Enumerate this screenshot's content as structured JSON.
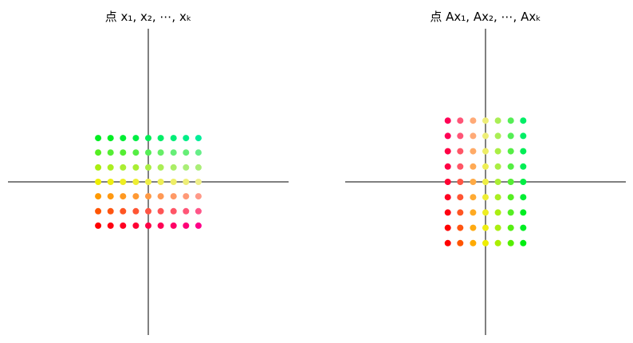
{
  "chart_data": [
    {
      "type": "scatter",
      "title": "点 x₁, x₂, ⋯, xₖ",
      "xlim": [
        -3.5,
        3.5
      ],
      "ylim": [
        -3.5,
        3.5
      ],
      "axes": "centered cross through origin, no ticks",
      "grid": false,
      "columns_x": [
        -1.25,
        -0.94,
        -0.63,
        -0.31,
        0,
        0.31,
        0.63,
        0.94,
        1.25
      ],
      "rows": [
        {
          "y": 1.0,
          "colors": [
            "#00ee22",
            "#00ee22",
            "#00ee33",
            "#00ee44",
            "#00ee55",
            "#00ee66",
            "#00ee77",
            "#00ee88",
            "#00ee99"
          ]
        },
        {
          "y": 0.67,
          "colors": [
            "#55ee22",
            "#55ee33",
            "#55ee33",
            "#55ee44",
            "#55ee55",
            "#66ee66",
            "#66ee77",
            "#66ee77",
            "#66ee88"
          ]
        },
        {
          "y": 0.33,
          "colors": [
            "#aaee11",
            "#aaee22",
            "#aaee33",
            "#aaee33",
            "#aaee44",
            "#aaee55",
            "#aaee66",
            "#aaee77",
            "#aaee77"
          ]
        },
        {
          "y": 0.0,
          "colors": [
            "#eeee00",
            "#eeee11",
            "#eeee22",
            "#eeee33",
            "#eeee44",
            "#eeee55",
            "#eeee66",
            "#eeee77",
            "#eeee88"
          ]
        },
        {
          "y": -0.33,
          "colors": [
            "#ff9900",
            "#ff9911",
            "#ff9922",
            "#ff9933",
            "#ff9944",
            "#ff9955",
            "#ff9966",
            "#ff9977",
            "#ff9988"
          ]
        },
        {
          "y": -0.67,
          "colors": [
            "#ff5500",
            "#ff5511",
            "#ff5522",
            "#ff5533",
            "#ff5544",
            "#ff5555",
            "#ff5566",
            "#ff5577",
            "#ff5588"
          ]
        },
        {
          "y": -1.0,
          "colors": [
            "#ff0000",
            "#ff0011",
            "#ff0022",
            "#ff0033",
            "#ff0044",
            "#ff0055",
            "#ff0066",
            "#ff0077",
            "#ff0088"
          ]
        }
      ]
    },
    {
      "type": "scatter",
      "title": "点 Ax₁, Ax₂, ⋯, Axₖ",
      "xlim": [
        -3.5,
        3.5
      ],
      "ylim": [
        -3.5,
        3.5
      ],
      "axes": "centered cross through origin, no ticks",
      "grid": false,
      "columns_x": [
        -0.94,
        -0.63,
        -0.31,
        0,
        0.31,
        0.63,
        0.94
      ],
      "rows": [
        {
          "y": 1.4,
          "colors": [
            "#ff0055",
            "#ff5577",
            "#ffaa77",
            "#eeee77",
            "#aaee55",
            "#55ee55",
            "#00ee66"
          ]
        },
        {
          "y": 1.05,
          "colors": [
            "#ff0055",
            "#ff5577",
            "#ffaa77",
            "#eeee77",
            "#aaee55",
            "#55ee55",
            "#00ee66"
          ]
        },
        {
          "y": 0.7,
          "colors": [
            "#ff0044",
            "#ff5566",
            "#ffaa66",
            "#eeee66",
            "#aaee44",
            "#55ee44",
            "#00ee55"
          ]
        },
        {
          "y": 0.35,
          "colors": [
            "#ff0044",
            "#ff5566",
            "#ffaa55",
            "#eeee55",
            "#aaee44",
            "#55ee44",
            "#00ee55"
          ]
        },
        {
          "y": 0.0,
          "colors": [
            "#ff0033",
            "#ff5544",
            "#ffaa44",
            "#eeee44",
            "#aaee33",
            "#55ee33",
            "#00ee44"
          ]
        },
        {
          "y": -0.35,
          "colors": [
            "#ff0022",
            "#ff5533",
            "#ffaa33",
            "#eeee33",
            "#aaee22",
            "#55ee22",
            "#00ee33"
          ]
        },
        {
          "y": -0.7,
          "colors": [
            "#ff0011",
            "#ff5522",
            "#ffaa22",
            "#eeee22",
            "#aaee11",
            "#55ee22",
            "#00ee22"
          ]
        },
        {
          "y": -1.05,
          "colors": [
            "#ff0000",
            "#ff5511",
            "#ffaa11",
            "#eeee11",
            "#aaee11",
            "#55ee11",
            "#00ee22"
          ]
        },
        {
          "y": -1.4,
          "colors": [
            "#ff0000",
            "#ff5500",
            "#ffaa00",
            "#eeee00",
            "#aaee00",
            "#55ee00",
            "#00ee11"
          ]
        }
      ]
    }
  ]
}
